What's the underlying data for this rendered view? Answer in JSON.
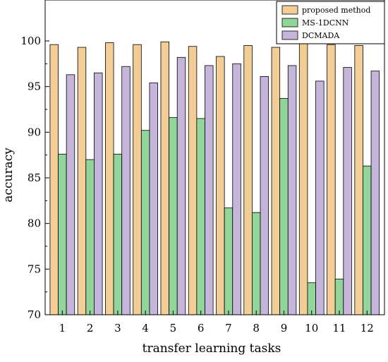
{
  "chart_data": {
    "type": "bar",
    "xlabel": "transfer learning tasks",
    "ylabel": "accuracy",
    "ylim": [
      70,
      100
    ],
    "yticks": [
      70,
      75,
      80,
      85,
      90,
      95,
      100
    ],
    "categories": [
      "1",
      "2",
      "3",
      "4",
      "5",
      "6",
      "7",
      "8",
      "9",
      "10",
      "11",
      "12"
    ],
    "series": [
      {
        "name": "proposed method",
        "color": "#f2cd96",
        "values": [
          99.6,
          99.3,
          99.8,
          99.6,
          99.9,
          99.4,
          98.3,
          99.5,
          99.3,
          99.7,
          99.6,
          99.5
        ]
      },
      {
        "name": "MS-1DCNN",
        "color": "#92d59a",
        "values": [
          87.6,
          87.0,
          87.6,
          90.2,
          91.6,
          91.5,
          81.7,
          81.2,
          93.7,
          73.5,
          73.9,
          86.3
        ]
      },
      {
        "name": "DCMADA",
        "color": "#c6b5db",
        "values": [
          96.3,
          96.5,
          97.2,
          95.4,
          98.2,
          97.3,
          97.5,
          96.1,
          97.3,
          95.6,
          97.1,
          96.7
        ]
      }
    ],
    "legend_position": "top-right",
    "grid": false
  }
}
